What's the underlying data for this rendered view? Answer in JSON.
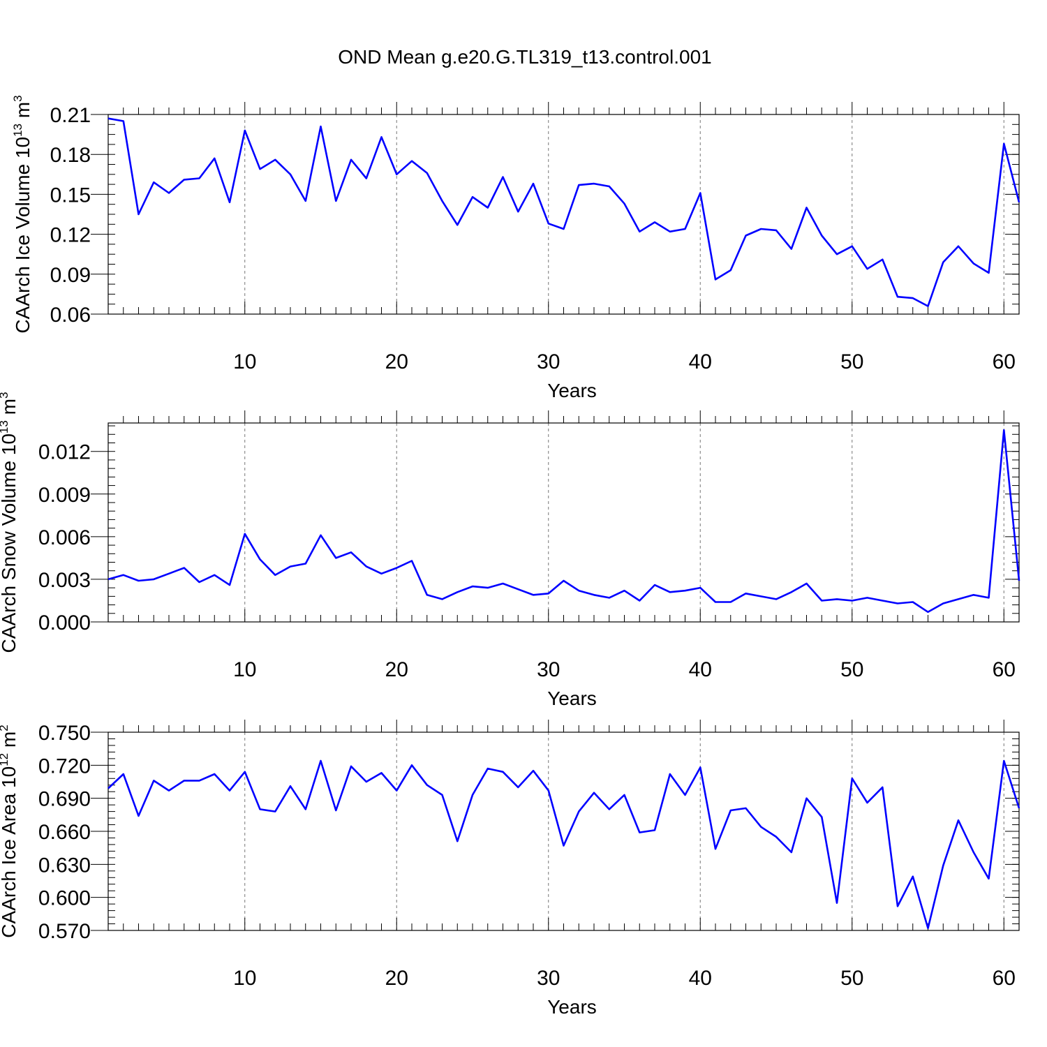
{
  "title": "OND Mean g.e20.G.TL319_t13.control.001",
  "colors": {
    "series": "#0000ff",
    "axis": "#000000",
    "grid": "#777777"
  },
  "chart_data": [
    {
      "type": "line",
      "name": "ice-volume",
      "title": "OND Mean g.e20.G.TL319_t13.control.001",
      "xlabel": "Years",
      "ylabel": {
        "main": "CAArch Ice Volume 10",
        "exp": "13",
        "unit": " m",
        "unit_exp": "3"
      },
      "xlim": [
        1,
        61
      ],
      "ylim": [
        0.06,
        0.21
      ],
      "x_ticks": [
        10,
        20,
        30,
        40,
        50,
        60
      ],
      "y_ticks": [
        "0.06",
        "0.09",
        "0.12",
        "0.15",
        "0.18",
        "0.21"
      ],
      "y_minor_step": 0.0075,
      "vgrid": [
        10,
        20,
        30,
        40,
        50,
        60
      ],
      "x": [
        1,
        2,
        3,
        4,
        5,
        6,
        7,
        8,
        9,
        10,
        11,
        12,
        13,
        14,
        15,
        16,
        17,
        18,
        19,
        20,
        21,
        22,
        23,
        24,
        25,
        26,
        27,
        28,
        29,
        30,
        31,
        32,
        33,
        34,
        35,
        36,
        37,
        38,
        39,
        40,
        41,
        42,
        43,
        44,
        45,
        46,
        47,
        48,
        49,
        50,
        51,
        52,
        53,
        54,
        55,
        56,
        57,
        58,
        59,
        60,
        61
      ],
      "values": [
        0.207,
        0.205,
        0.135,
        0.159,
        0.151,
        0.161,
        0.162,
        0.177,
        0.144,
        0.198,
        0.169,
        0.176,
        0.165,
        0.145,
        0.201,
        0.145,
        0.176,
        0.162,
        0.193,
        0.165,
        0.175,
        0.166,
        0.145,
        0.127,
        0.148,
        0.14,
        0.163,
        0.137,
        0.158,
        0.128,
        0.124,
        0.157,
        0.158,
        0.156,
        0.143,
        0.122,
        0.129,
        0.122,
        0.124,
        0.151,
        0.086,
        0.093,
        0.119,
        0.124,
        0.123,
        0.109,
        0.14,
        0.119,
        0.105,
        0.111,
        0.094,
        0.101,
        0.073,
        0.072,
        0.066,
        0.099,
        0.111,
        0.098,
        0.091,
        0.188,
        0.144
      ]
    },
    {
      "type": "line",
      "name": "snow-volume",
      "xlabel": "Years",
      "ylabel": {
        "main": "CAArch Snow Volume 10",
        "exp": "13",
        "unit": " m",
        "unit_exp": "3"
      },
      "xlim": [
        1,
        61
      ],
      "ylim": [
        0.0,
        0.014
      ],
      "x_ticks": [
        10,
        20,
        30,
        40,
        50,
        60
      ],
      "y_ticks": [
        "0.000",
        "0.003",
        "0.006",
        "0.009",
        "0.012"
      ],
      "y_minor_step": 0.0006,
      "vgrid": [
        10,
        20,
        30,
        40,
        50,
        60
      ],
      "x": [
        1,
        2,
        3,
        4,
        5,
        6,
        7,
        8,
        9,
        10,
        11,
        12,
        13,
        14,
        15,
        16,
        17,
        18,
        19,
        20,
        21,
        22,
        23,
        24,
        25,
        26,
        27,
        28,
        29,
        30,
        31,
        32,
        33,
        34,
        35,
        36,
        37,
        38,
        39,
        40,
        41,
        42,
        43,
        44,
        45,
        46,
        47,
        48,
        49,
        50,
        51,
        52,
        53,
        54,
        55,
        56,
        57,
        58,
        59,
        60,
        61
      ],
      "values": [
        0.003,
        0.0033,
        0.0029,
        0.003,
        0.0034,
        0.0038,
        0.0028,
        0.0033,
        0.0026,
        0.0062,
        0.0044,
        0.0033,
        0.0039,
        0.0041,
        0.0061,
        0.0045,
        0.0049,
        0.0039,
        0.0034,
        0.0038,
        0.0043,
        0.0019,
        0.0016,
        0.0021,
        0.0025,
        0.0024,
        0.0027,
        0.0023,
        0.0019,
        0.002,
        0.0029,
        0.0022,
        0.0019,
        0.0017,
        0.0022,
        0.0015,
        0.0026,
        0.0021,
        0.0022,
        0.0024,
        0.0014,
        0.0014,
        0.002,
        0.0018,
        0.0016,
        0.0021,
        0.0027,
        0.0015,
        0.0016,
        0.0015,
        0.0017,
        0.0015,
        0.0013,
        0.0014,
        0.0007,
        0.0013,
        0.0016,
        0.0019,
        0.0017,
        0.0135,
        0.0029
      ]
    },
    {
      "type": "line",
      "name": "ice-area",
      "xlabel": "Years",
      "ylabel": {
        "main": "CAArch Ice Area 10",
        "exp": "12",
        "unit": " m",
        "unit_exp": "2"
      },
      "xlim": [
        1,
        61
      ],
      "ylim": [
        0.57,
        0.75
      ],
      "x_ticks": [
        10,
        20,
        30,
        40,
        50,
        60
      ],
      "y_ticks": [
        "0.570",
        "0.600",
        "0.630",
        "0.660",
        "0.690",
        "0.720",
        "0.750"
      ],
      "y_minor_step": 0.006,
      "vgrid": [
        10,
        20,
        30,
        40,
        50,
        60
      ],
      "x": [
        1,
        2,
        3,
        4,
        5,
        6,
        7,
        8,
        9,
        10,
        11,
        12,
        13,
        14,
        15,
        16,
        17,
        18,
        19,
        20,
        21,
        22,
        23,
        24,
        25,
        26,
        27,
        28,
        29,
        30,
        31,
        32,
        33,
        34,
        35,
        36,
        37,
        38,
        39,
        40,
        41,
        42,
        43,
        44,
        45,
        46,
        47,
        48,
        49,
        50,
        51,
        52,
        53,
        54,
        55,
        56,
        57,
        58,
        59,
        60,
        61
      ],
      "values": [
        0.699,
        0.712,
        0.674,
        0.706,
        0.697,
        0.706,
        0.706,
        0.712,
        0.697,
        0.714,
        0.68,
        0.678,
        0.701,
        0.68,
        0.724,
        0.679,
        0.719,
        0.705,
        0.713,
        0.697,
        0.72,
        0.702,
        0.693,
        0.651,
        0.693,
        0.717,
        0.714,
        0.7,
        0.715,
        0.697,
        0.647,
        0.678,
        0.695,
        0.68,
        0.693,
        0.659,
        0.661,
        0.712,
        0.693,
        0.718,
        0.644,
        0.679,
        0.681,
        0.664,
        0.655,
        0.641,
        0.69,
        0.673,
        0.595,
        0.708,
        0.686,
        0.7,
        0.592,
        0.619,
        0.572,
        0.629,
        0.67,
        0.641,
        0.617,
        0.724,
        0.681
      ]
    }
  ]
}
